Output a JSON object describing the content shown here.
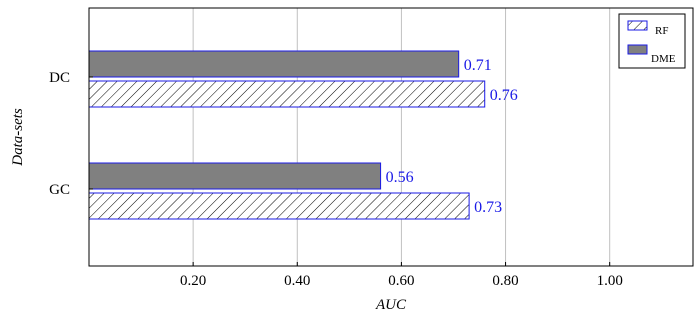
{
  "chart_data": {
    "type": "bar",
    "orientation": "horizontal",
    "categories": [
      "DC",
      "GC"
    ],
    "series": [
      {
        "name": "DME",
        "values": [
          0.71,
          0.56
        ],
        "fill": "#808080",
        "stroke": "#1a1ae6",
        "pattern": "solid"
      },
      {
        "name": "RF",
        "values": [
          0.76,
          0.73
        ],
        "fill": "#ffffff",
        "stroke": "#1a1ae6",
        "pattern": "diagonal-hatch"
      }
    ],
    "data_labels": {
      "DC": {
        "DME": "0.71",
        "RF": "0.76"
      },
      "GC": {
        "DME": "0.56",
        "RF": "0.73"
      }
    },
    "xlabel": "AUC",
    "ylabel": "Data-sets",
    "xlim": [
      0,
      1.16
    ],
    "xticks": [
      0.2,
      0.4,
      0.6,
      0.8,
      1.0
    ],
    "xtick_labels": [
      "0.20",
      "0.40",
      "0.60",
      "0.80",
      "1.00"
    ],
    "grid": "vertical",
    "legend": {
      "position": "top-right",
      "entries": [
        "RF",
        "DME"
      ]
    },
    "label_color": "#1a1ae6",
    "grid_color": "#c0c0c0"
  }
}
